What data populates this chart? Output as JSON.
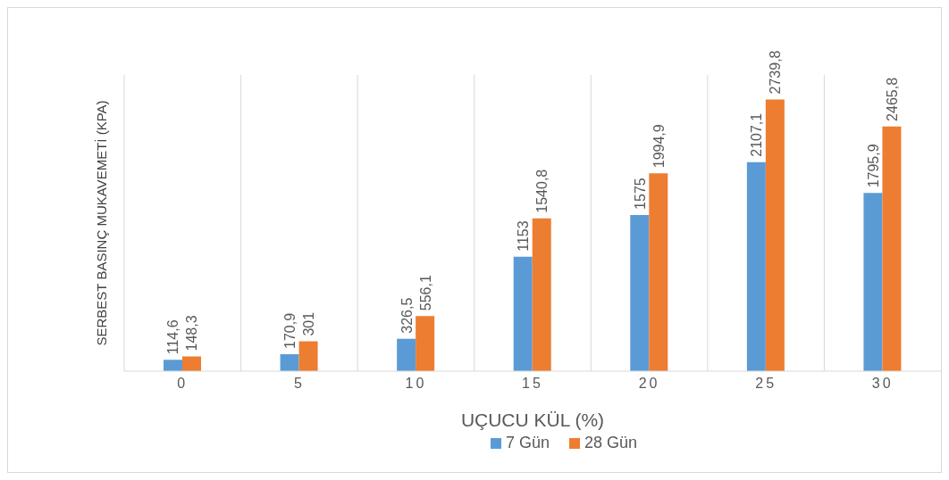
{
  "chart_data": {
    "type": "bar",
    "xlabel": "UÇUCU KÜL (%)",
    "ylabel": "SERBEST BASINÇ MUKAVEMETİ (KPA)",
    "categories": [
      "0",
      "5",
      "10",
      "15",
      "20",
      "25",
      "30"
    ],
    "series": [
      {
        "name": "7 Gün",
        "color": "#5b9bd5",
        "values": [
          114.6,
          170.9,
          326.5,
          1153,
          1575,
          2107.1,
          1795.9
        ],
        "value_labels": [
          "114,6",
          "170,9",
          "326,5",
          "1153",
          "1575",
          "2107,1",
          "1795,9"
        ]
      },
      {
        "name": "28 Gün",
        "color": "#ed7d31",
        "values": [
          148.3,
          301,
          556.1,
          1540.8,
          1994.9,
          2739.8,
          2465.8
        ],
        "value_labels": [
          "148,3",
          "301",
          "556,1",
          "1540,8",
          "1994,9",
          "2739,8",
          "2465,8"
        ]
      }
    ],
    "grid": "x",
    "legend": "bottom",
    "tick_labels": "x"
  }
}
